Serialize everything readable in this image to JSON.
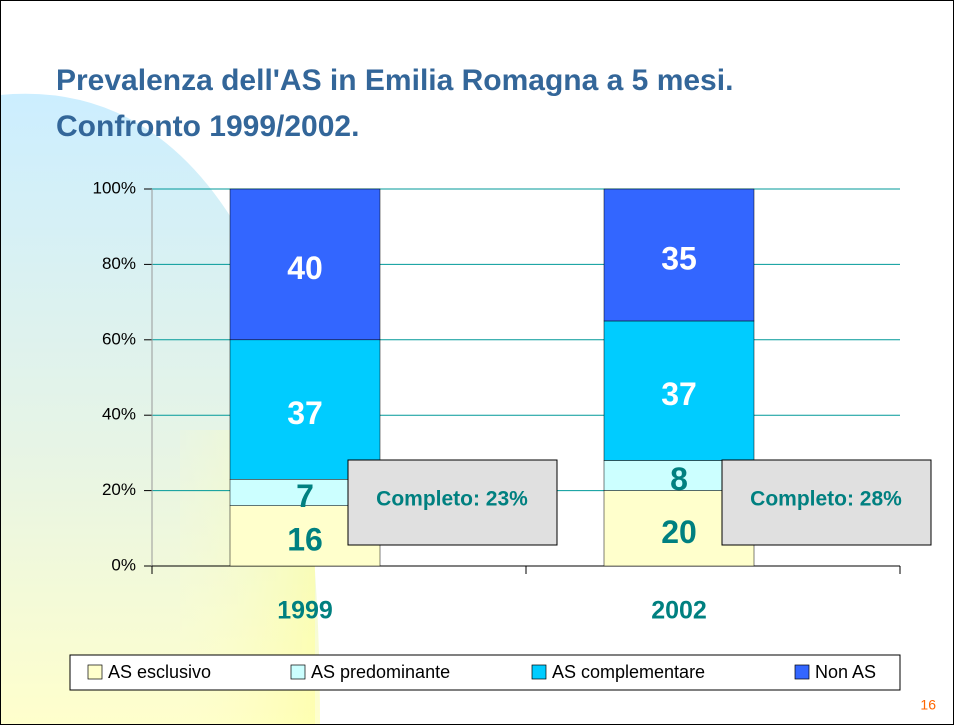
{
  "chart_data": {
    "type": "stacked_bar",
    "title": [
      "Prevalenza dell'AS in Emilia Romagna a 5 mesi.",
      "Confronto 1999/2002."
    ],
    "categories": [
      "1999",
      "2002"
    ],
    "series": [
      {
        "name": "AS esclusivo",
        "color": "#ffffcc",
        "label_color": "#008080",
        "values": [
          16,
          20
        ]
      },
      {
        "name": "AS predominante",
        "color": "#ccffff",
        "label_color": "#008080",
        "values": [
          7,
          8
        ]
      },
      {
        "name": "AS complementare",
        "color": "#00ccff",
        "label_color": "#ffffff",
        "values": [
          37,
          37
        ]
      },
      {
        "name": "Non AS",
        "color": "#3366ff",
        "label_color": "#ffffff",
        "values": [
          40,
          35
        ]
      }
    ],
    "ylim": [
      0,
      100
    ],
    "yticks": [
      {
        "value": 0,
        "label": "0%"
      },
      {
        "value": 20,
        "label": "20%"
      },
      {
        "value": 40,
        "label": "40%"
      },
      {
        "value": 60,
        "label": "60%"
      },
      {
        "value": 80,
        "label": "80%"
      },
      {
        "value": 100,
        "label": "100%"
      }
    ],
    "grid": true,
    "legend": "bottom",
    "annotations": [
      "Completo: 23%",
      "Completo: 28%"
    ],
    "page_number": "16"
  }
}
